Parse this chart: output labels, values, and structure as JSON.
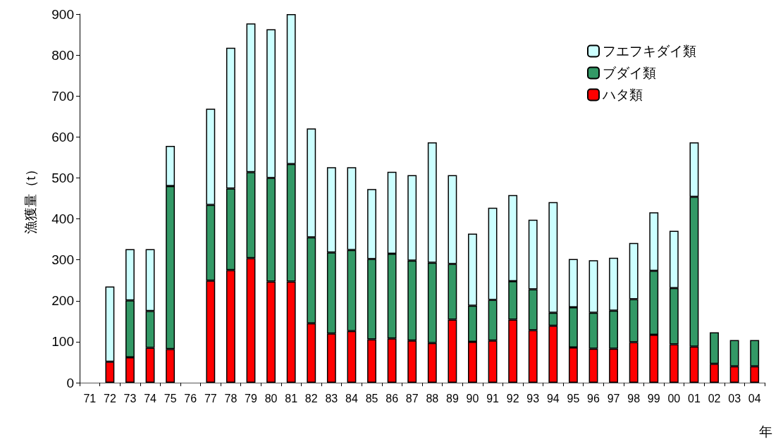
{
  "chart_data": {
    "type": "bar",
    "stacked": true,
    "xlabel": "年",
    "ylabel": "漁獲量（t）",
    "categories": [
      "71",
      "72",
      "73",
      "74",
      "75",
      "76",
      "77",
      "78",
      "79",
      "80",
      "81",
      "82",
      "83",
      "84",
      "85",
      "86",
      "87",
      "88",
      "89",
      "90",
      "91",
      "92",
      "93",
      "94",
      "95",
      "96",
      "97",
      "98",
      "99",
      "00",
      "01",
      "02",
      "03",
      "04"
    ],
    "series": [
      {
        "name": "ハタ類",
        "color": "#ff0000",
        "values": [
          null,
          51,
          62,
          85,
          82,
          null,
          249,
          275,
          304,
          247,
          247,
          145,
          120,
          126,
          106,
          108,
          103,
          97,
          154,
          100,
          103,
          154,
          128,
          139,
          86,
          83,
          83,
          99,
          117,
          94,
          88,
          46,
          40,
          40
        ]
      },
      {
        "name": "ブダイ類",
        "color": "#339966",
        "values": [
          null,
          null,
          139,
          90,
          398,
          null,
          185,
          199,
          210,
          253,
          287,
          210,
          198,
          198,
          196,
          207,
          195,
          196,
          136,
          88,
          99,
          94,
          100,
          32,
          98,
          88,
          93,
          105,
          156,
          137,
          366,
          77,
          64,
          64
        ]
      },
      {
        "name": "フエフキダイ類",
        "color": "#ccffff",
        "values": [
          null,
          184,
          125,
          151,
          98,
          null,
          235,
          344,
          363,
          363,
          366,
          266,
          208,
          202,
          171,
          200,
          209,
          294,
          217,
          176,
          225,
          210,
          170,
          270,
          118,
          128,
          129,
          137,
          143,
          140,
          133,
          null,
          null,
          null
        ]
      }
    ],
    "ylim": [
      0,
      900
    ],
    "yticks": [
      0,
      100,
      200,
      300,
      400,
      500,
      600,
      700,
      800,
      900
    ],
    "grid": false,
    "legend": "top right"
  }
}
